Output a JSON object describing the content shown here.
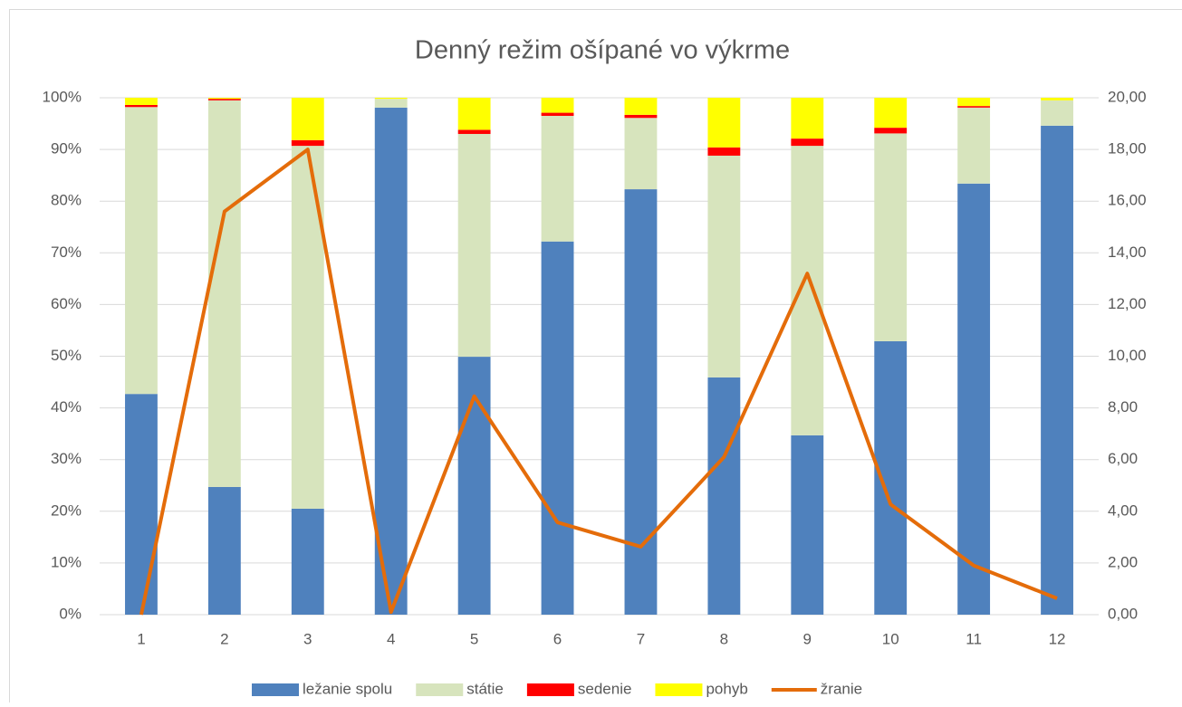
{
  "chart_data": {
    "type": "bar",
    "stacked": true,
    "title": "Denný režim ošípané vo výkrme",
    "categories": [
      "1",
      "2",
      "3",
      "4",
      "5",
      "6",
      "7",
      "8",
      "9",
      "10",
      "11",
      "12"
    ],
    "series": [
      {
        "name": "ležanie spolu",
        "type": "bar",
        "color": "#4f81bd",
        "values": [
          42.7,
          24.7,
          20.5,
          98.1,
          49.9,
          72.2,
          82.3,
          45.9,
          34.7,
          52.9,
          83.4,
          94.6
        ]
      },
      {
        "name": "státie",
        "type": "bar",
        "color": "#d7e4bd",
        "values": [
          55.5,
          74.8,
          70.2,
          1.7,
          43.1,
          24.3,
          13.8,
          42.9,
          56.0,
          40.2,
          14.7,
          4.9
        ]
      },
      {
        "name": "sedenie",
        "type": "bar",
        "color": "#ff0000",
        "values": [
          0.4,
          0.3,
          1.1,
          0,
          0.8,
          0.6,
          0.6,
          1.6,
          1.4,
          1.1,
          0.3,
          0
        ]
      },
      {
        "name": "pohyb",
        "type": "bar",
        "color": "#ffff00",
        "values": [
          1.4,
          0.2,
          8.2,
          0.2,
          6.2,
          2.9,
          3.3,
          9.6,
          7.9,
          5.8,
          1.6,
          0.5
        ]
      },
      {
        "name": "žranie",
        "type": "line",
        "axis": "y2",
        "color": "#e46c0a",
        "values": [
          0,
          15.6,
          18.0,
          0.1,
          8.45,
          3.57,
          2.63,
          6.1,
          13.2,
          4.27,
          1.9,
          0.63
        ]
      }
    ],
    "ylim": [
      0,
      100
    ],
    "yticks": [
      {
        "value": 0,
        "label": "0%"
      },
      {
        "value": 10,
        "label": "10%"
      },
      {
        "value": 20,
        "label": "20%"
      },
      {
        "value": 30,
        "label": "30%"
      },
      {
        "value": 40,
        "label": "40%"
      },
      {
        "value": 50,
        "label": "50%"
      },
      {
        "value": 60,
        "label": "60%"
      },
      {
        "value": 70,
        "label": "70%"
      },
      {
        "value": 80,
        "label": "80%"
      },
      {
        "value": 90,
        "label": "90%"
      },
      {
        "value": 100,
        "label": "100%"
      }
    ],
    "y2lim": [
      0,
      20
    ],
    "y2ticks": [
      {
        "value": 0,
        "label": "0,00"
      },
      {
        "value": 2,
        "label": "2,00"
      },
      {
        "value": 4,
        "label": "4,00"
      },
      {
        "value": 6,
        "label": "6,00"
      },
      {
        "value": 8,
        "label": "8,00"
      },
      {
        "value": 10,
        "label": "10,00"
      },
      {
        "value": 12,
        "label": "12,00"
      },
      {
        "value": 14,
        "label": "14,00"
      },
      {
        "value": 16,
        "label": "16,00"
      },
      {
        "value": 18,
        "label": "18,00"
      },
      {
        "value": 20,
        "label": "20,00"
      }
    ],
    "grid": true,
    "legend": "bottom"
  }
}
